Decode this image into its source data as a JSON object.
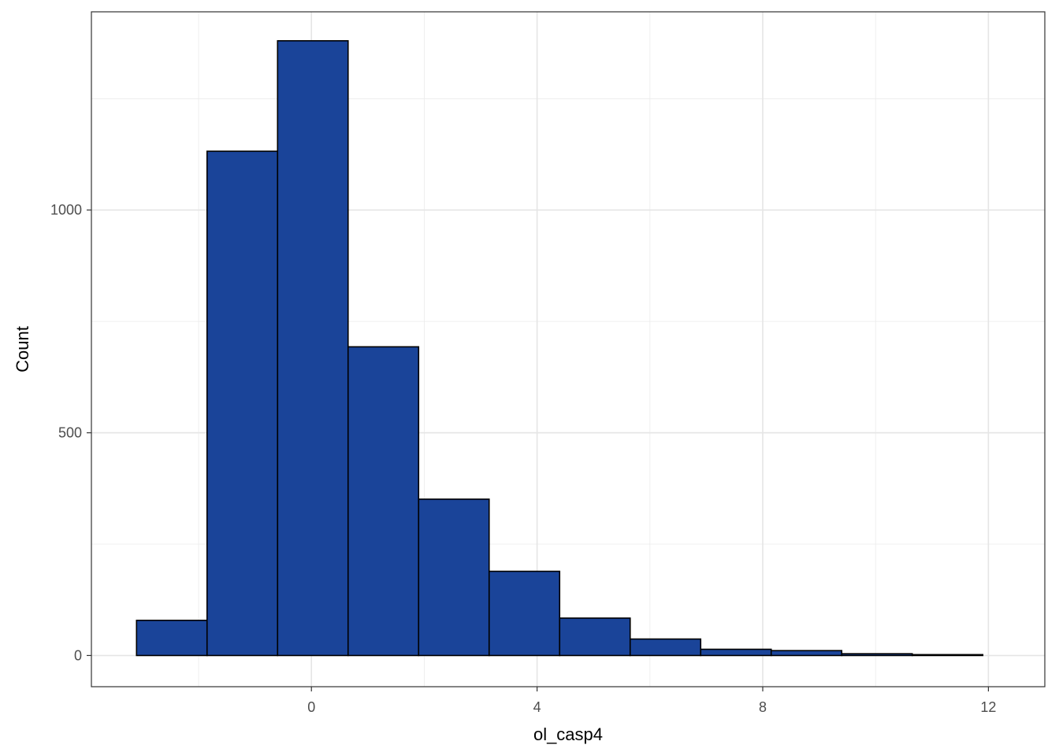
{
  "chart_data": {
    "type": "histogram",
    "xlabel": "ol_casp4",
    "ylabel": "Count",
    "x_ticks": [
      0,
      4,
      8,
      12
    ],
    "y_ticks": [
      0,
      500,
      1000
    ],
    "xlim": [
      -3.9,
      13.0
    ],
    "ylim": [
      -70,
      1445
    ],
    "grid": true,
    "bar_fill": "#1a4499",
    "bar_stroke": "#000000",
    "bins": [
      {
        "x0": -3.1,
        "x1": -1.85,
        "count": 79
      },
      {
        "x0": -1.85,
        "x1": -0.6,
        "count": 1132
      },
      {
        "x0": -0.6,
        "x1": 0.65,
        "count": 1380
      },
      {
        "x0": 0.65,
        "x1": 1.9,
        "count": 693
      },
      {
        "x0": 1.9,
        "x1": 3.15,
        "count": 351
      },
      {
        "x0": 3.15,
        "x1": 4.4,
        "count": 189
      },
      {
        "x0": 4.4,
        "x1": 5.65,
        "count": 84
      },
      {
        "x0": 5.65,
        "x1": 6.9,
        "count": 37
      },
      {
        "x0": 6.9,
        "x1": 8.15,
        "count": 14
      },
      {
        "x0": 8.15,
        "x1": 9.4,
        "count": 11
      },
      {
        "x0": 9.4,
        "x1": 10.65,
        "count": 4
      },
      {
        "x0": 10.65,
        "x1": 11.9,
        "count": 2
      }
    ]
  }
}
